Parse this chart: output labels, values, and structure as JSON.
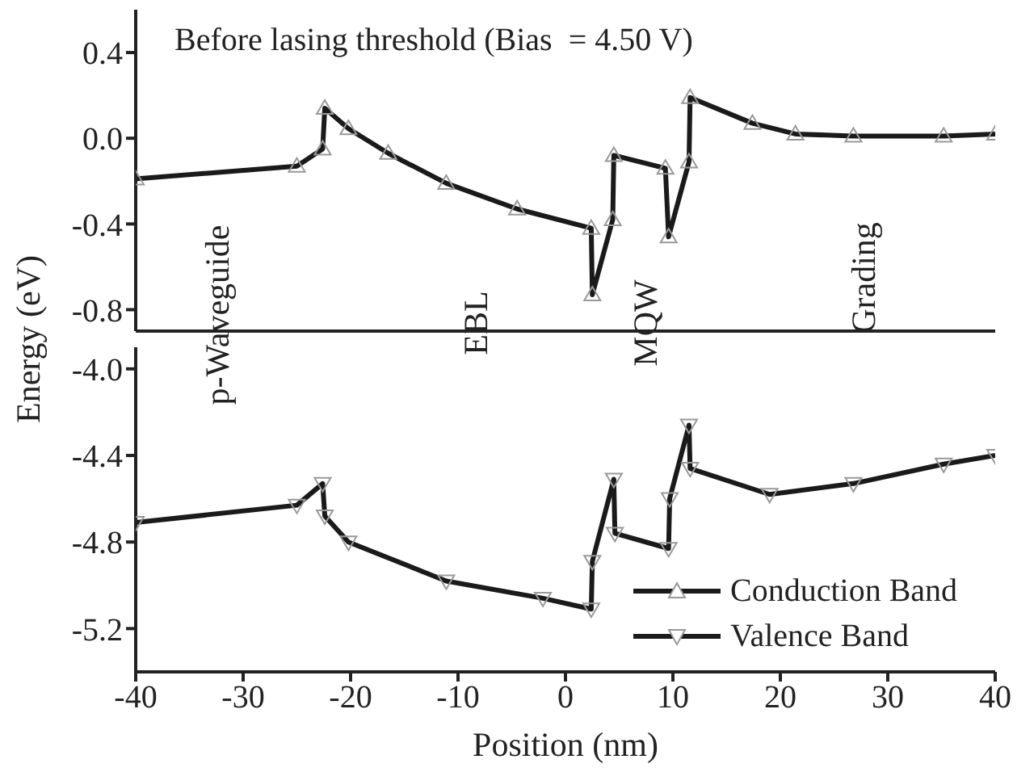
{
  "chart_data": [
    {
      "type": "line",
      "title": "Before lasing threshold (Bias  = 4.50 V)",
      "ylabel": "Energy (eV)",
      "xlim": [
        -40,
        40
      ],
      "xticks": [
        -40,
        -30,
        -20,
        -10,
        0,
        10,
        20,
        30,
        40
      ],
      "ylim": [
        -0.9,
        0.6
      ],
      "yticks": [
        -0.8,
        -0.4,
        {
          "value": 0,
          "label": "0.0"
        },
        0.4
      ],
      "tick_labels": "y",
      "marker": "triangle",
      "legend": "bottom right",
      "series": [
        {
          "name": "Conduction Band",
          "color": "#1a1a1a",
          "x": [
            -40,
            -25,
            -22.6,
            -22.4,
            -20.2,
            -16.5,
            -11.1,
            -4.5,
            2.4,
            2.5,
            4.4,
            4.5,
            9.3,
            9.6,
            11.5,
            11.6,
            17.4,
            21.4,
            26.8,
            35.2,
            40
          ],
          "values": [
            -0.19,
            -0.13,
            -0.05,
            0.14,
            0.045,
            -0.07,
            -0.21,
            -0.33,
            -0.42,
            -0.73,
            -0.38,
            -0.08,
            -0.14,
            -0.46,
            -0.11,
            0.19,
            0.07,
            0.02,
            0.01,
            0.01,
            0.02
          ]
        }
      ]
    },
    {
      "type": "line",
      "xlabel": "Position (nm)",
      "xlim": [
        -40,
        40
      ],
      "xticks": [
        -40,
        -30,
        -20,
        -10,
        0,
        10,
        20,
        30,
        40
      ],
      "ylim": [
        -5.4,
        -3.9
      ],
      "yticks": [
        {
          "value": -5.2,
          "label": "-5.2"
        },
        {
          "value": -4.8,
          "label": "-4.8"
        },
        {
          "value": -4.4,
          "label": "-4.4"
        },
        {
          "value": -4,
          "label": "-4.0"
        }
      ],
      "marker": "triangle",
      "legend": "bottom right",
      "annotations": [
        "p-Waveguide",
        "EBL",
        "MQW",
        "Grading"
      ],
      "series": [
        {
          "name": "Valence Band",
          "color": "#1a1a1a",
          "x": [
            -40,
            -25,
            -22.6,
            -22.4,
            -20.2,
            -11.1,
            -2.1,
            2.4,
            2.5,
            4.5,
            4.6,
            9.6,
            9.7,
            11.5,
            11.6,
            19,
            26.8,
            35.2,
            40
          ],
          "values": [
            -4.71,
            -4.63,
            -4.53,
            -4.68,
            -4.8,
            -4.98,
            -5.06,
            -5.11,
            -4.89,
            -4.51,
            -4.76,
            -4.83,
            -4.6,
            -4.26,
            -4.46,
            -4.58,
            -4.53,
            -4.44,
            -4.4
          ]
        }
      ]
    }
  ]
}
